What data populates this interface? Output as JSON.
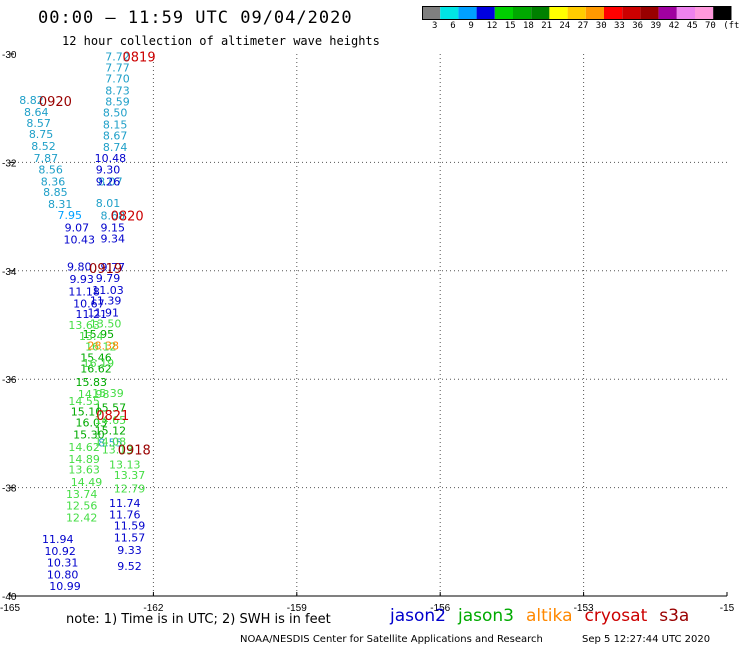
{
  "header": {
    "title": "00:00 – 11:59 UTC 09/04/2020",
    "subtitle": "12 hour collection of altimeter wave heights"
  },
  "colorbar": {
    "colors": [
      "#7f7f7f",
      "#00e5e5",
      "#00a0ff",
      "#0000e0",
      "#00d000",
      "#00a800",
      "#008000",
      "#ffff00",
      "#ffcc00",
      "#ff9900",
      "#ff0000",
      "#cc0000",
      "#990000",
      "#a000a0",
      "#ee82ee",
      "#ff99dd",
      "#000000"
    ],
    "labels": [
      "3",
      "6",
      "9",
      "12",
      "15",
      "18",
      "21",
      "24",
      "27",
      "30",
      "33",
      "36",
      "39",
      "42",
      "45",
      "70",
      "(ft)"
    ]
  },
  "footer": {
    "note": "note: 1) Time is in UTC; 2) SWH is in feet",
    "credit": "NOAA/NESDIS Center for Satellite Applications and Research",
    "timestamp": "Sep  5 12:27:44 UTC 2020",
    "legend": [
      {
        "name": "jason2",
        "color": "#0000cc"
      },
      {
        "name": "jason3",
        "color": "#00aa00"
      },
      {
        "name": "altika",
        "color": "#ff8800"
      },
      {
        "name": "cryosat",
        "color": "#cc0000"
      },
      {
        "name": "s3a",
        "color": "#990000"
      }
    ]
  },
  "chart_data": {
    "type": "scatter",
    "xlim": [
      -165,
      -150
    ],
    "ylim": [
      -40,
      -30
    ],
    "x_ticks": [
      "-165",
      "-162",
      "-159",
      "-156",
      "-153",
      "-15"
    ],
    "y_ticks": [
      "-30",
      "-32",
      "-34",
      "-36",
      "-38",
      "-40"
    ],
    "grid": true,
    "track_labels": [
      {
        "text": "0819",
        "lon": -162.3,
        "lat": -30.05,
        "color": "#cc0000"
      },
      {
        "text": "0920",
        "lon": -164.05,
        "lat": -30.87,
        "color": "#990000"
      },
      {
        "text": "0820",
        "lon": -162.55,
        "lat": -32.98,
        "color": "#cc0000"
      },
      {
        "text": "0919",
        "lon": -163.0,
        "lat": -33.95,
        "color": "#990000"
      },
      {
        "text": "0821",
        "lon": -162.85,
        "lat": -36.66,
        "color": "#cc0000"
      },
      {
        "text": "0918",
        "lon": -162.4,
        "lat": -37.3,
        "color": "#990000"
      }
    ],
    "series": [
      {
        "name": "s3a",
        "color": "#1e9fc8",
        "points": [
          {
            "lon": -162.75,
            "lat": -30.05,
            "value": "7.72"
          },
          {
            "lon": -162.75,
            "lat": -30.25,
            "value": "7.77"
          },
          {
            "lon": -162.75,
            "lat": -30.45,
            "value": "7.70"
          },
          {
            "lon": -162.75,
            "lat": -30.67,
            "value": "8.73"
          },
          {
            "lon": -162.75,
            "lat": -30.88,
            "value": "8.59"
          },
          {
            "lon": -162.8,
            "lat": -31.08,
            "value": "8.50"
          },
          {
            "lon": -162.8,
            "lat": -31.3,
            "value": "8.15"
          },
          {
            "lon": -162.8,
            "lat": -31.5,
            "value": "8.67"
          },
          {
            "lon": -162.8,
            "lat": -31.72,
            "value": "8.74"
          },
          {
            "lon": -164.55,
            "lat": -30.85,
            "value": "8.82"
          },
          {
            "lon": -164.45,
            "lat": -31.07,
            "value": "8.64"
          },
          {
            "lon": -164.4,
            "lat": -31.27,
            "value": "8.57"
          },
          {
            "lon": -164.35,
            "lat": -31.48,
            "value": "8.75"
          },
          {
            "lon": -164.3,
            "lat": -31.7,
            "value": "8.52"
          },
          {
            "lon": -164.25,
            "lat": -31.92,
            "value": "7.87"
          },
          {
            "lon": -164.15,
            "lat": -32.13,
            "value": "8.56"
          },
          {
            "lon": -164.1,
            "lat": -32.35,
            "value": "8.36"
          },
          {
            "lon": -164.05,
            "lat": -32.55,
            "value": "8.85"
          },
          {
            "lon": -163.95,
            "lat": -32.77,
            "value": "8.31"
          },
          {
            "lon": -162.9,
            "lat": -32.35,
            "value": "8.07"
          },
          {
            "lon": -162.95,
            "lat": -32.75,
            "value": "8.01"
          },
          {
            "lon": -162.85,
            "lat": -32.98,
            "value": "8.68"
          },
          {
            "lon": -162.9,
            "lat": -37.17,
            "value": "8.55"
          }
        ]
      },
      {
        "name": "cryosat",
        "color": "#00a0ff",
        "points": [
          {
            "lon": -163.75,
            "lat": -32.97,
            "value": "7.95"
          }
        ]
      },
      {
        "name": "jason2",
        "color": "#0000cc",
        "points": [
          {
            "lon": -162.9,
            "lat": -31.92,
            "value": "10.48"
          },
          {
            "lon": -162.95,
            "lat": -32.13,
            "value": "9.30"
          },
          {
            "lon": -162.95,
            "lat": -32.35,
            "value": "9.26"
          },
          {
            "lon": -162.85,
            "lat": -33.2,
            "value": "9.15"
          },
          {
            "lon": -162.85,
            "lat": -33.4,
            "value": "9.34"
          },
          {
            "lon": -162.85,
            "lat": -33.93,
            "value": "9.77"
          },
          {
            "lon": -162.95,
            "lat": -34.13,
            "value": "9.79"
          },
          {
            "lon": -162.95,
            "lat": -34.35,
            "value": "11.03"
          },
          {
            "lon": -163.0,
            "lat": -34.55,
            "value": "11.39"
          },
          {
            "lon": -163.05,
            "lat": -34.77,
            "value": "11.91"
          },
          {
            "lon": -163.6,
            "lat": -33.2,
            "value": "9.07"
          },
          {
            "lon": -163.55,
            "lat": -33.42,
            "value": "10.43"
          },
          {
            "lon": -163.55,
            "lat": -33.92,
            "value": "9.80"
          },
          {
            "lon": -163.5,
            "lat": -34.15,
            "value": "9.93"
          },
          {
            "lon": -163.45,
            "lat": -34.38,
            "value": "11.18"
          },
          {
            "lon": -163.35,
            "lat": -34.6,
            "value": "10.67"
          },
          {
            "lon": -163.3,
            "lat": -34.8,
            "value": "11.21"
          },
          {
            "lon": -162.6,
            "lat": -38.28,
            "value": "11.74"
          },
          {
            "lon": -162.6,
            "lat": -38.5,
            "value": "11.76"
          },
          {
            "lon": -162.5,
            "lat": -38.7,
            "value": "11.59"
          },
          {
            "lon": -162.5,
            "lat": -38.92,
            "value": "11.57"
          },
          {
            "lon": -162.5,
            "lat": -39.15,
            "value": "9.33"
          },
          {
            "lon": -162.5,
            "lat": -39.45,
            "value": "9.52"
          },
          {
            "lon": -164.0,
            "lat": -38.95,
            "value": "11.94"
          },
          {
            "lon": -163.95,
            "lat": -39.17,
            "value": "10.92"
          },
          {
            "lon": -163.9,
            "lat": -39.38,
            "value": "10.31"
          },
          {
            "lon": -163.9,
            "lat": -39.6,
            "value": "10.80"
          },
          {
            "lon": -163.85,
            "lat": -39.82,
            "value": "10.99"
          }
        ]
      },
      {
        "name": "jason3",
        "color": "#00aa00",
        "points": [
          {
            "lon": -163.15,
            "lat": -35.17,
            "value": "15.95"
          },
          {
            "lon": -163.2,
            "lat": -35.6,
            "value": "15.46"
          },
          {
            "lon": -163.2,
            "lat": -35.8,
            "value": "16.62"
          },
          {
            "lon": -163.3,
            "lat": -36.05,
            "value": "15.83"
          },
          {
            "lon": -163.4,
            "lat": -36.6,
            "value": "15.10"
          },
          {
            "lon": -163.3,
            "lat": -36.8,
            "value": "16.03"
          },
          {
            "lon": -163.35,
            "lat": -37.02,
            "value": "15.30"
          },
          {
            "lon": -162.9,
            "lat": -36.52,
            "value": "15.57"
          },
          {
            "lon": -162.9,
            "lat": -36.95,
            "value": "15.12"
          }
        ]
      },
      {
        "name": "jason3-light",
        "color": "#44dd44",
        "points": [
          {
            "lon": -163.0,
            "lat": -34.97,
            "value": "13.50"
          },
          {
            "lon": -163.45,
            "lat": -35.0,
            "value": "13.63"
          },
          {
            "lon": -163.3,
            "lat": -35.2,
            "value": "13.4"
          },
          {
            "lon": -163.1,
            "lat": -35.4,
            "value": "16.12"
          },
          {
            "lon": -163.15,
            "lat": -35.7,
            "value": "16.19"
          },
          {
            "lon": -163.25,
            "lat": -36.27,
            "value": "14.98"
          },
          {
            "lon": -162.95,
            "lat": -36.25,
            "value": "15.39"
          },
          {
            "lon": -163.45,
            "lat": -36.4,
            "value": "14.55"
          },
          {
            "lon": -162.9,
            "lat": -36.75,
            "value": "14.65"
          },
          {
            "lon": -163.45,
            "lat": -37.25,
            "value": "14.62"
          },
          {
            "lon": -163.45,
            "lat": -37.47,
            "value": "14.89"
          },
          {
            "lon": -163.45,
            "lat": -37.67,
            "value": "13.63"
          },
          {
            "lon": -163.4,
            "lat": -37.9,
            "value": "14.49"
          },
          {
            "lon": -163.5,
            "lat": -38.12,
            "value": "13.74"
          },
          {
            "lon": -163.5,
            "lat": -38.33,
            "value": "12.56"
          },
          {
            "lon": -163.5,
            "lat": -38.55,
            "value": "12.42"
          },
          {
            "lon": -162.9,
            "lat": -37.15,
            "value": "14.08"
          },
          {
            "lon": -162.75,
            "lat": -37.3,
            "value": "13.13"
          },
          {
            "lon": -162.6,
            "lat": -37.57,
            "value": "13.13"
          },
          {
            "lon": -162.5,
            "lat": -37.77,
            "value": "13.37"
          },
          {
            "lon": -162.5,
            "lat": -38.02,
            "value": "12.79"
          }
        ]
      },
      {
        "name": "altika",
        "color": "#ff8800",
        "points": [
          {
            "lon": -163.05,
            "lat": -35.38,
            "value": "28.38"
          }
        ]
      }
    ]
  }
}
